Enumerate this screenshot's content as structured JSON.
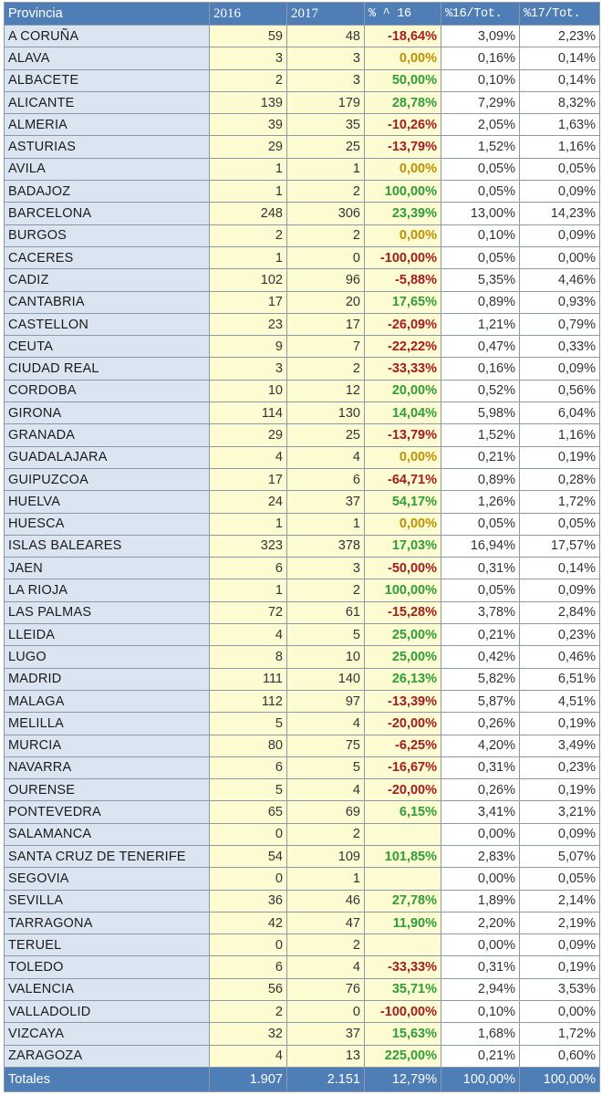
{
  "header": {
    "provincia": "Provincia",
    "y2016": "2016",
    "y2017": "2017",
    "variation": "% ^ 16",
    "pct16": "%16/Tot.",
    "pct17": "%17/Tot."
  },
  "rows": [
    {
      "province": "A CORUÑA",
      "y2016": "59",
      "y2017": "48",
      "variation": "-18,64%",
      "pct16": "3,09%",
      "pct17": "2,23%",
      "trend": "neg"
    },
    {
      "province": "ALAVA",
      "y2016": "3",
      "y2017": "3",
      "variation": "0,00%",
      "pct16": "0,16%",
      "pct17": "0,14%",
      "trend": "zero"
    },
    {
      "province": "ALBACETE",
      "y2016": "2",
      "y2017": "3",
      "variation": "50,00%",
      "pct16": "0,10%",
      "pct17": "0,14%",
      "trend": "pos"
    },
    {
      "province": "ALICANTE",
      "y2016": "139",
      "y2017": "179",
      "variation": "28,78%",
      "pct16": "7,29%",
      "pct17": "8,32%",
      "trend": "pos"
    },
    {
      "province": "ALMERIA",
      "y2016": "39",
      "y2017": "35",
      "variation": "-10,26%",
      "pct16": "2,05%",
      "pct17": "1,63%",
      "trend": "neg"
    },
    {
      "province": "ASTURIAS",
      "y2016": "29",
      "y2017": "25",
      "variation": "-13,79%",
      "pct16": "1,52%",
      "pct17": "1,16%",
      "trend": "neg"
    },
    {
      "province": "AVILA",
      "y2016": "1",
      "y2017": "1",
      "variation": "0,00%",
      "pct16": "0,05%",
      "pct17": "0,05%",
      "trend": "zero"
    },
    {
      "province": "BADAJOZ",
      "y2016": "1",
      "y2017": "2",
      "variation": "100,00%",
      "pct16": "0,05%",
      "pct17": "0,09%",
      "trend": "pos"
    },
    {
      "province": "BARCELONA",
      "y2016": "248",
      "y2017": "306",
      "variation": "23,39%",
      "pct16": "13,00%",
      "pct17": "14,23%",
      "trend": "pos"
    },
    {
      "province": "BURGOS",
      "y2016": "2",
      "y2017": "2",
      "variation": "0,00%",
      "pct16": "0,10%",
      "pct17": "0,09%",
      "trend": "zero"
    },
    {
      "province": "CACERES",
      "y2016": "1",
      "y2017": "0",
      "variation": "-100,00%",
      "pct16": "0,05%",
      "pct17": "0,00%",
      "trend": "neg"
    },
    {
      "province": "CADIZ",
      "y2016": "102",
      "y2017": "96",
      "variation": "-5,88%",
      "pct16": "5,35%",
      "pct17": "4,46%",
      "trend": "neg"
    },
    {
      "province": "CANTABRIA",
      "y2016": "17",
      "y2017": "20",
      "variation": "17,65%",
      "pct16": "0,89%",
      "pct17": "0,93%",
      "trend": "pos"
    },
    {
      "province": "CASTELLON",
      "y2016": "23",
      "y2017": "17",
      "variation": "-26,09%",
      "pct16": "1,21%",
      "pct17": "0,79%",
      "trend": "neg"
    },
    {
      "province": "CEUTA",
      "y2016": "9",
      "y2017": "7",
      "variation": "-22,22%",
      "pct16": "0,47%",
      "pct17": "0,33%",
      "trend": "neg"
    },
    {
      "province": "CIUDAD REAL",
      "y2016": "3",
      "y2017": "2",
      "variation": "-33,33%",
      "pct16": "0,16%",
      "pct17": "0,09%",
      "trend": "neg"
    },
    {
      "province": "CORDOBA",
      "y2016": "10",
      "y2017": "12",
      "variation": "20,00%",
      "pct16": "0,52%",
      "pct17": "0,56%",
      "trend": "pos"
    },
    {
      "province": "GIRONA",
      "y2016": "114",
      "y2017": "130",
      "variation": "14,04%",
      "pct16": "5,98%",
      "pct17": "6,04%",
      "trend": "pos"
    },
    {
      "province": "GRANADA",
      "y2016": "29",
      "y2017": "25",
      "variation": "-13,79%",
      "pct16": "1,52%",
      "pct17": "1,16%",
      "trend": "neg"
    },
    {
      "province": "GUADALAJARA",
      "y2016": "4",
      "y2017": "4",
      "variation": "0,00%",
      "pct16": "0,21%",
      "pct17": "0,19%",
      "trend": "zero"
    },
    {
      "province": "GUIPUZCOA",
      "y2016": "17",
      "y2017": "6",
      "variation": "-64,71%",
      "pct16": "0,89%",
      "pct17": "0,28%",
      "trend": "neg"
    },
    {
      "province": "HUELVA",
      "y2016": "24",
      "y2017": "37",
      "variation": "54,17%",
      "pct16": "1,26%",
      "pct17": "1,72%",
      "trend": "pos"
    },
    {
      "province": "HUESCA",
      "y2016": "1",
      "y2017": "1",
      "variation": "0,00%",
      "pct16": "0,05%",
      "pct17": "0,05%",
      "trend": "zero"
    },
    {
      "province": "ISLAS BALEARES",
      "y2016": "323",
      "y2017": "378",
      "variation": "17,03%",
      "pct16": "16,94%",
      "pct17": "17,57%",
      "trend": "pos"
    },
    {
      "province": "JAEN",
      "y2016": "6",
      "y2017": "3",
      "variation": "-50,00%",
      "pct16": "0,31%",
      "pct17": "0,14%",
      "trend": "neg"
    },
    {
      "province": "LA RIOJA",
      "y2016": "1",
      "y2017": "2",
      "variation": "100,00%",
      "pct16": "0,05%",
      "pct17": "0,09%",
      "trend": "pos"
    },
    {
      "province": "LAS PALMAS",
      "y2016": "72",
      "y2017": "61",
      "variation": "-15,28%",
      "pct16": "3,78%",
      "pct17": "2,84%",
      "trend": "neg"
    },
    {
      "province": "LLEIDA",
      "y2016": "4",
      "y2017": "5",
      "variation": "25,00%",
      "pct16": "0,21%",
      "pct17": "0,23%",
      "trend": "pos"
    },
    {
      "province": "LUGO",
      "y2016": "8",
      "y2017": "10",
      "variation": "25,00%",
      "pct16": "0,42%",
      "pct17": "0,46%",
      "trend": "pos"
    },
    {
      "province": "MADRID",
      "y2016": "111",
      "y2017": "140",
      "variation": "26,13%",
      "pct16": "5,82%",
      "pct17": "6,51%",
      "trend": "pos"
    },
    {
      "province": "MALAGA",
      "y2016": "112",
      "y2017": "97",
      "variation": "-13,39%",
      "pct16": "5,87%",
      "pct17": "4,51%",
      "trend": "neg"
    },
    {
      "province": "MELILLA",
      "y2016": "5",
      "y2017": "4",
      "variation": "-20,00%",
      "pct16": "0,26%",
      "pct17": "0,19%",
      "trend": "neg"
    },
    {
      "province": "MURCIA",
      "y2016": "80",
      "y2017": "75",
      "variation": "-6,25%",
      "pct16": "4,20%",
      "pct17": "3,49%",
      "trend": "neg"
    },
    {
      "province": "NAVARRA",
      "y2016": "6",
      "y2017": "5",
      "variation": "-16,67%",
      "pct16": "0,31%",
      "pct17": "0,23%",
      "trend": "neg"
    },
    {
      "province": "OURENSE",
      "y2016": "5",
      "y2017": "4",
      "variation": "-20,00%",
      "pct16": "0,26%",
      "pct17": "0,19%",
      "trend": "neg"
    },
    {
      "province": "PONTEVEDRA",
      "y2016": "65",
      "y2017": "69",
      "variation": "6,15%",
      "pct16": "3,41%",
      "pct17": "3,21%",
      "trend": "pos"
    },
    {
      "province": "SALAMANCA",
      "y2016": "0",
      "y2017": "2",
      "variation": "",
      "pct16": "0,00%",
      "pct17": "0,09%",
      "trend": "empty"
    },
    {
      "province": "SANTA CRUZ DE TENERIFE",
      "y2016": "54",
      "y2017": "109",
      "variation": "101,85%",
      "pct16": "2,83%",
      "pct17": "5,07%",
      "trend": "pos"
    },
    {
      "province": "SEGOVIA",
      "y2016": "0",
      "y2017": "1",
      "variation": "",
      "pct16": "0,00%",
      "pct17": "0,05%",
      "trend": "empty"
    },
    {
      "province": "SEVILLA",
      "y2016": "36",
      "y2017": "46",
      "variation": "27,78%",
      "pct16": "1,89%",
      "pct17": "2,14%",
      "trend": "pos"
    },
    {
      "province": "TARRAGONA",
      "y2016": "42",
      "y2017": "47",
      "variation": "11,90%",
      "pct16": "2,20%",
      "pct17": "2,19%",
      "trend": "pos"
    },
    {
      "province": "TERUEL",
      "y2016": "0",
      "y2017": "2",
      "variation": "",
      "pct16": "0,00%",
      "pct17": "0,09%",
      "trend": "empty"
    },
    {
      "province": "TOLEDO",
      "y2016": "6",
      "y2017": "4",
      "variation": "-33,33%",
      "pct16": "0,31%",
      "pct17": "0,19%",
      "trend": "neg"
    },
    {
      "province": "VALENCIA",
      "y2016": "56",
      "y2017": "76",
      "variation": "35,71%",
      "pct16": "2,94%",
      "pct17": "3,53%",
      "trend": "pos"
    },
    {
      "province": "VALLADOLID",
      "y2016": "2",
      "y2017": "0",
      "variation": "-100,00%",
      "pct16": "0,10%",
      "pct17": "0,00%",
      "trend": "neg"
    },
    {
      "province": "VIZCAYA",
      "y2016": "32",
      "y2017": "37",
      "variation": "15,63%",
      "pct16": "1,68%",
      "pct17": "1,72%",
      "trend": "pos"
    },
    {
      "province": "ZARAGOZA",
      "y2016": "4",
      "y2017": "13",
      "variation": "225,00%",
      "pct16": "0,21%",
      "pct17": "0,60%",
      "trend": "pos"
    }
  ],
  "totals": {
    "label": "Totales",
    "y2016": "1.907",
    "y2017": "2.151",
    "variation": "12,79%",
    "pct16": "100,00%",
    "pct17": "100,00%"
  },
  "colors": {
    "header_bg": "#4f7db5",
    "name_bg": "#dbe5f1",
    "number_bg": "#fdfbd2",
    "negative": "#a61c1c",
    "positive": "#2e9e36",
    "zero": "#bf9000"
  }
}
